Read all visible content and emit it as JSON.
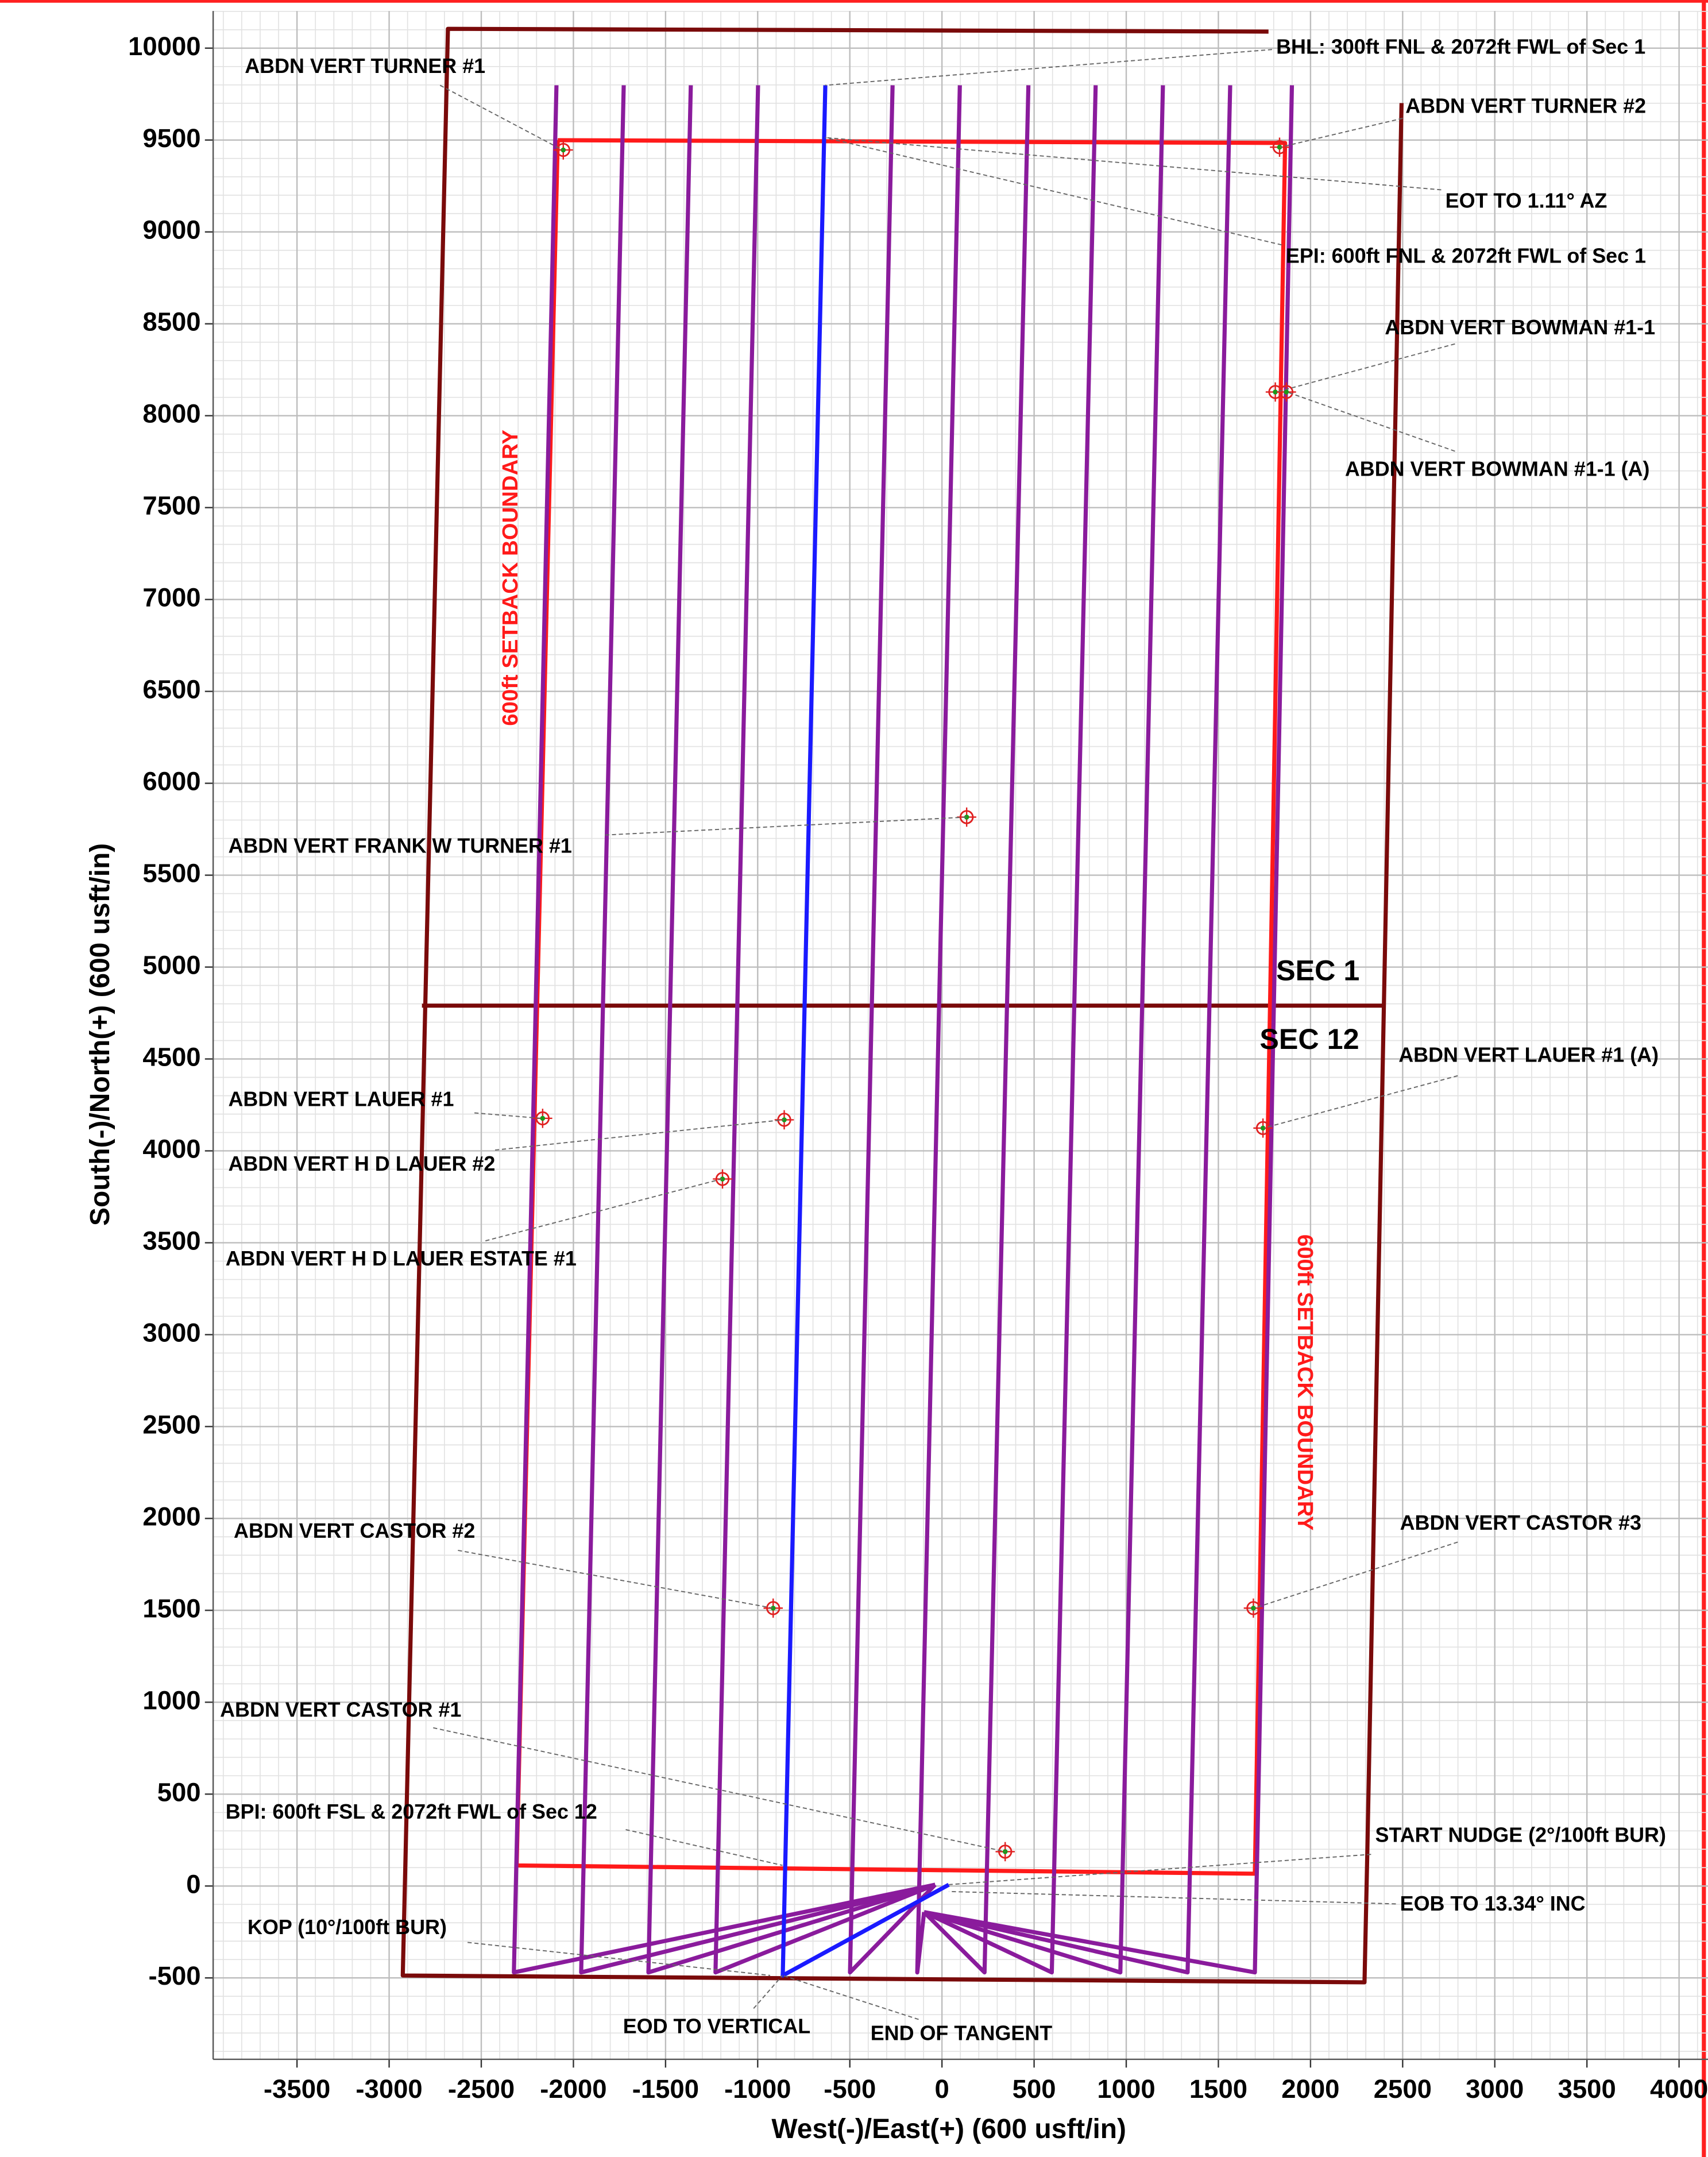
{
  "chart_data": {
    "type": "plan",
    "xlabel": "West(-)/East(+) (600 usft/in)",
    "ylabel": "South(-)/North(+) (600 usft/in)",
    "xlim": [
      -3955,
      4157
    ],
    "ylim": [
      -943,
      10202
    ],
    "xticks": [
      -3500,
      -3000,
      -2500,
      -2000,
      -1500,
      -1000,
      -500,
      0,
      500,
      1000,
      1500,
      2000,
      2500,
      3000,
      3500,
      4000
    ],
    "yticks": [
      -500,
      0,
      500,
      1000,
      1500,
      2000,
      2500,
      3000,
      3500,
      4000,
      4500,
      5000,
      5500,
      6000,
      6500,
      7000,
      7500,
      8000,
      8500,
      9000,
      9500,
      10000
    ],
    "grid": true,
    "series": [
      {
        "color": "#7a0a0a",
        "x": [
          1772,
          -2681,
          -2926,
          2293,
          2308,
          2494
        ],
        "y": [
          10090,
          10105,
          -487,
          -524,
          172,
          9701
        ]
      },
      {
        "color": "#7a0a0a",
        "x": [
          -2822,
          2398
        ],
        "y": [
          4790,
          4790
        ]
      },
      {
        "color": "#ff1a1a",
        "x": [
          -2085,
          1862,
          1698,
          -2308,
          -2085
        ],
        "y": [
          9499,
          9484,
          67,
          112,
          9499
        ]
      },
      {
        "color": "#8a1b9c",
        "x": [
          -37,
          -2323,
          -2092
        ],
        "y": [
          7,
          -470,
          9798
        ]
      },
      {
        "color": "#8a1b9c",
        "x": [
          -37,
          -1958,
          -1727
        ],
        "y": [
          7,
          -470,
          9798
        ]
      },
      {
        "color": "#8a1b9c",
        "x": [
          -37,
          -1593,
          -1363
        ],
        "y": [
          7,
          -470,
          9798
        ]
      },
      {
        "color": "#8a1b9c",
        "x": [
          -37,
          -1229,
          -998
        ],
        "y": [
          7,
          -470,
          9798
        ]
      },
      {
        "color": "#8a1b9c",
        "x": [
          -37,
          -499,
          -268
        ],
        "y": [
          7,
          -470,
          9798
        ]
      },
      {
        "color": "#8a1b9c",
        "x": [
          -97,
          -134,
          97
        ],
        "y": [
          -142,
          -470,
          9798
        ]
      },
      {
        "color": "#8a1b9c",
        "x": [
          -97,
          231,
          469
        ],
        "y": [
          -142,
          -470,
          9798
        ]
      },
      {
        "color": "#8a1b9c",
        "x": [
          -97,
          596,
          834
        ],
        "y": [
          -142,
          -470,
          9798
        ]
      },
      {
        "color": "#8a1b9c",
        "x": [
          -97,
          968,
          1199
        ],
        "y": [
          -142,
          -470,
          9798
        ]
      },
      {
        "color": "#8a1b9c",
        "x": [
          -97,
          1333,
          1564
        ],
        "y": [
          -142,
          -470,
          9798
        ]
      },
      {
        "color": "#8a1b9c",
        "x": [
          -97,
          1698,
          1899
        ],
        "y": [
          -142,
          -470,
          9798
        ]
      },
      {
        "color": "#1a1aff",
        "x": [
          37,
          -864,
          -633
        ],
        "y": [
          7,
          -487,
          9798
        ]
      }
    ],
    "markers": {
      "x": [
        -2055,
        1832,
        1809,
        1869,
        134,
        -2167,
        -856,
        1742,
        -1191,
        -916,
        1690,
        343
      ],
      "y": [
        9446,
        9461,
        8129,
        8129,
        5816,
        4177,
        4169,
        4124,
        3847,
        1512,
        1512,
        187
      ]
    },
    "annotations": [
      "BHL: 300ft FNL & 2072ft FWL of Sec 1",
      "ABDN VERT TURNER #1",
      "ABDN VERT TURNER #2",
      "EOT TO 1.11° AZ",
      "EPI: 600ft FNL & 2072ft FWL of Sec 1",
      "ABDN VERT BOWMAN #1-1",
      "ABDN VERT BOWMAN #1-1 (A)",
      "600ft SETBACK BOUNDARY",
      "ABDN VERT FRANK W TURNER #1",
      "SEC 1",
      "SEC 12",
      "ABDN VERT LAUER #1 (A)",
      "ABDN VERT LAUER #1",
      "ABDN VERT H D LAUER #2",
      "ABDN VERT H D LAUER ESTATE #1",
      "600ft SETBACK BOUNDARY",
      "ABDN VERT CASTOR #2",
      "ABDN VERT CASTOR #3",
      "ABDN VERT CASTOR #1",
      "BPI: 600ft FSL & 2072ft FWL of Sec 12",
      "START NUDGE (2°/100ft BUR)",
      "EOB TO 13.34° INC",
      "KOP (10°/100ft BUR)",
      "EOD TO VERTICAL",
      "END OF TANGENT"
    ]
  }
}
